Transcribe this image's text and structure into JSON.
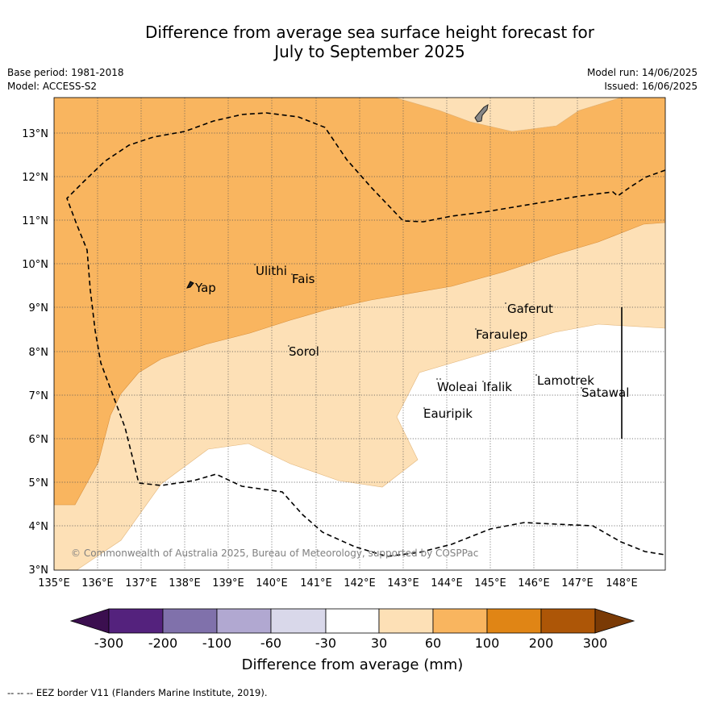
{
  "title": {
    "line1": "Difference from average sea surface height forecast for",
    "line2": "July to September 2025"
  },
  "meta": {
    "base_period": "Base period: 1981-2018",
    "model": "Model: ACCESS-S2",
    "model_run": "Model run: 14/06/2025",
    "issued": "Issued: 16/06/2025"
  },
  "map": {
    "lon_labels": [
      "135°E",
      "136°E",
      "137°E",
      "138°E",
      "139°E",
      "140°E",
      "141°E",
      "142°E",
      "143°E",
      "144°E",
      "145°E",
      "146°E",
      "147°E",
      "148°E"
    ],
    "lat_labels": [
      "3°N",
      "4°N",
      "5°N",
      "6°N",
      "7°N",
      "8°N",
      "9°N",
      "10°N",
      "11°N",
      "12°N",
      "13°N"
    ],
    "places": [
      "Yap",
      "Ulithi",
      "Fais",
      "Sorol",
      "Gaferut",
      "Faraulep",
      "Woleai",
      "Ifalik",
      "Lamotrek",
      "Satawal",
      "Eauripik"
    ],
    "copyright": "© Commonwealth of Australia 2025, Bureau of Meteorology, supported by COSPPac"
  },
  "legend": {
    "tick_labels": [
      "-300",
      "-200",
      "-100",
      "-60",
      "-30",
      "30",
      "60",
      "100",
      "200",
      "300"
    ],
    "colors": {
      "below_-300": "#3b0f4f",
      "-300_-200": "#54227d",
      "-200_-100": "#8071ab",
      "-100_-60": "#b1a8d1",
      "-60_-30": "#d9d8ea",
      "-30_30": "#ffffff",
      "30_60": "#fde0b6",
      "60_100": "#f9b55f",
      "100_200": "#e08515",
      "200_300": "#ad5607",
      "above_300": "#7a3a05"
    },
    "axis_label": "Difference from average (mm)"
  },
  "footnote": "--  --  -- EEZ border V11 (Flanders Marine Institute, 2019)."
}
